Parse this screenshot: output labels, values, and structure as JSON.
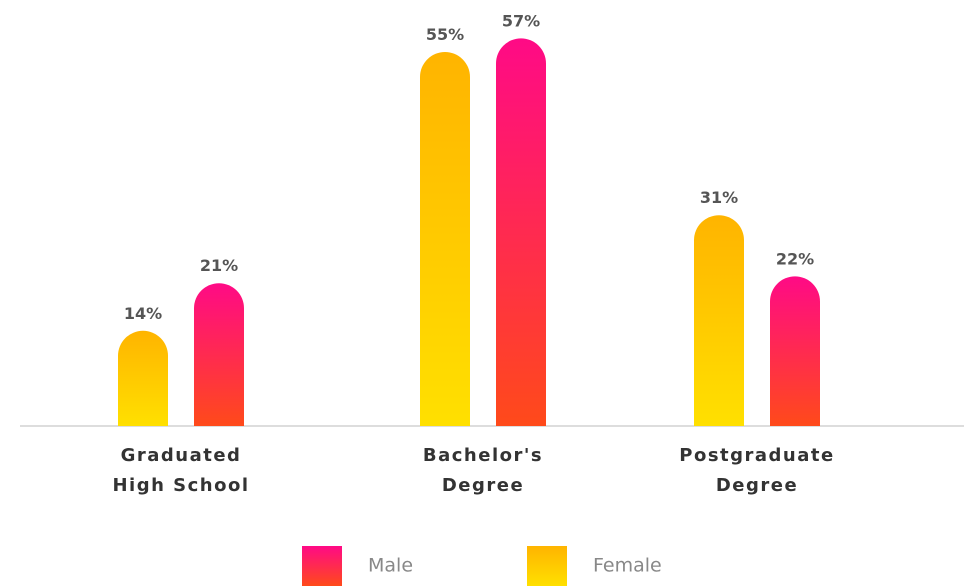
{
  "chart_data": {
    "type": "bar",
    "categories": [
      "Graduated High School",
      "Bachelor's Degree",
      "Postgraduate Degree"
    ],
    "series": [
      {
        "name": "Female",
        "color": "#ffb400",
        "values": [
          14,
          55,
          31
        ],
        "value_labels": [
          "14%",
          "55%",
          "31%"
        ]
      },
      {
        "name": "Male",
        "color": "#ff0a86",
        "values": [
          21,
          57,
          22
        ],
        "value_labels": [
          "21%",
          "57%",
          "22%"
        ]
      }
    ]
  }
}
